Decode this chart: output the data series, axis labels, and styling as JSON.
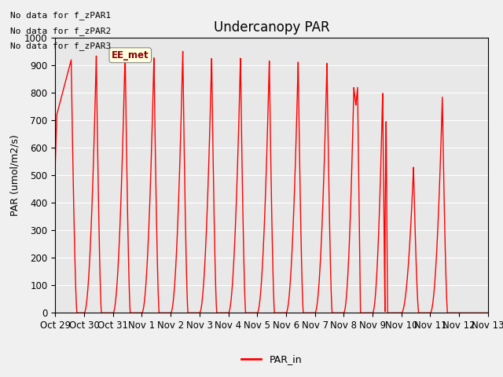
{
  "title": "Undercanopy PAR",
  "ylabel": "PAR (umol/m2/s)",
  "ylim": [
    0,
    1000
  ],
  "line_color": "#FF0000",
  "line_width": 1.0,
  "bg_color": "#E8E8E8",
  "fig_color": "#F0F0F0",
  "legend_label": "PAR_in",
  "no_data_texts": [
    "No data for f_zPAR1",
    "No data for f_zPAR2",
    "No data for f_zPAR3"
  ],
  "ee_met_label": "EE_met",
  "tick_labels": [
    "Oct 29",
    "Oct 30",
    "Oct 31",
    "Nov 1",
    "Nov 2",
    "Nov 3",
    "Nov 4",
    "Nov 5",
    "Nov 6",
    "Nov 7",
    "Nov 8",
    "Nov 9",
    "Nov 10",
    "Nov 11",
    "Nov 12",
    "Nov 13"
  ],
  "num_days": 15,
  "spikes": [
    {
      "day": 0,
      "rise": 0.55,
      "peak": 920,
      "fall": 0.75,
      "shape": "partial_start"
    },
    {
      "day": 1,
      "rise": 0.42,
      "peak": 935,
      "fall": 0.6,
      "shape": "normal"
    },
    {
      "day": 2,
      "rise": 0.42,
      "peak": 955,
      "fall": 0.6,
      "shape": "normal"
    },
    {
      "day": 3,
      "rise": 0.42,
      "peak": 930,
      "fall": 0.6,
      "shape": "normal"
    },
    {
      "day": 4,
      "rise": 0.42,
      "peak": 955,
      "fall": 0.6,
      "shape": "normal"
    },
    {
      "day": 5,
      "rise": 0.42,
      "peak": 930,
      "fall": 0.6,
      "shape": "normal"
    },
    {
      "day": 6,
      "rise": 0.42,
      "peak": 930,
      "fall": 0.6,
      "shape": "normal"
    },
    {
      "day": 7,
      "rise": 0.42,
      "peak": 920,
      "fall": 0.6,
      "shape": "normal"
    },
    {
      "day": 8,
      "rise": 0.42,
      "peak": 915,
      "fall": 0.6,
      "shape": "normal"
    },
    {
      "day": 9,
      "rise": 0.42,
      "peak": 910,
      "fall": 0.6,
      "shape": "normal"
    },
    {
      "day": 10,
      "rise": 0.42,
      "peak": 820,
      "fall": 0.6,
      "shape": "double"
    },
    {
      "day": 11,
      "rise": 0.42,
      "peak": 800,
      "fall": 0.6,
      "shape": "double2"
    },
    {
      "day": 12,
      "rise": 0.42,
      "peak": 530,
      "fall": 0.6,
      "shape": "normal"
    },
    {
      "day": 13,
      "rise": 0.42,
      "peak": 785,
      "fall": 0.6,
      "shape": "normal"
    }
  ]
}
